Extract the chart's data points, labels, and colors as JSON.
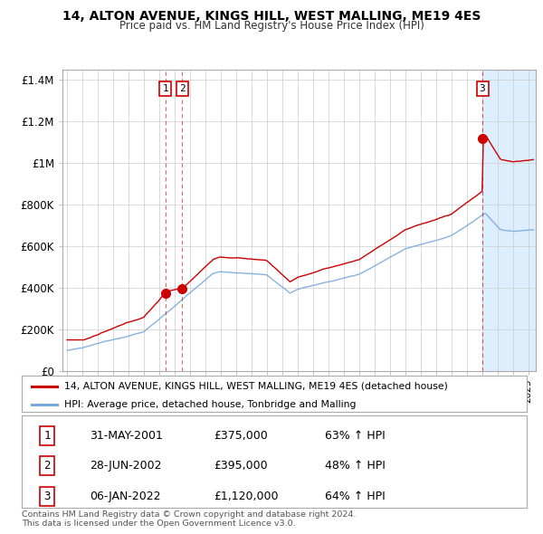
{
  "title": "14, ALTON AVENUE, KINGS HILL, WEST MALLING, ME19 4ES",
  "subtitle": "Price paid vs. HM Land Registry's House Price Index (HPI)",
  "ylim": [
    0,
    1450000
  ],
  "yticks": [
    0,
    200000,
    400000,
    600000,
    800000,
    1000000,
    1200000,
    1400000
  ],
  "ytick_labels": [
    "£0",
    "£200K",
    "£400K",
    "£600K",
    "£800K",
    "£1M",
    "£1.2M",
    "£1.4M"
  ],
  "background_color": "#ffffff",
  "grid_color": "#cccccc",
  "property_color": "#cc0000",
  "hpi_color": "#7aaadd",
  "shade_color": "#ddeeff",
  "transaction_dates": [
    2001.41,
    2002.49,
    2022.02
  ],
  "transaction_prices": [
    375000,
    395000,
    1120000
  ],
  "transaction_labels": [
    "1",
    "2",
    "3"
  ],
  "legend_property": "14, ALTON AVENUE, KINGS HILL, WEST MALLING, ME19 4ES (detached house)",
  "legend_hpi": "HPI: Average price, detached house, Tonbridge and Malling",
  "table_rows": [
    [
      "1",
      "31-MAY-2001",
      "£375,000",
      "63% ↑ HPI"
    ],
    [
      "2",
      "28-JUN-2002",
      "£395,000",
      "48% ↑ HPI"
    ],
    [
      "3",
      "06-JAN-2022",
      "£1,120,000",
      "64% ↑ HPI"
    ]
  ],
  "footer": "Contains HM Land Registry data © Crown copyright and database right 2024.\nThis data is licensed under the Open Government Licence v3.0.",
  "xlim_start": 1994.7,
  "xlim_end": 2025.5
}
